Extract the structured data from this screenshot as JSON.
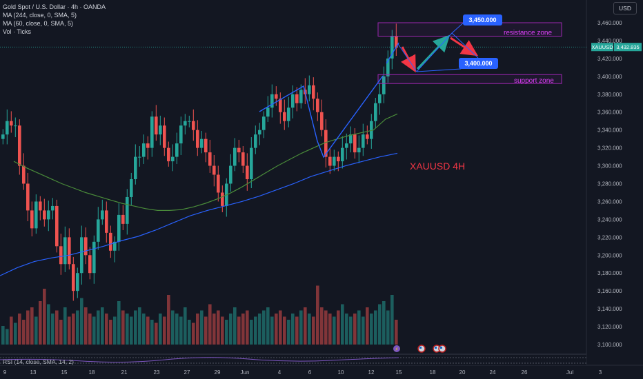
{
  "legend": {
    "title": "Gold Spot / U.S. Dollar · 4h · OANDA",
    "ma1": "MA (244, close, 0, SMA, 5)",
    "ma2": "MA (60, close, 0, SMA, 5)",
    "vol": "Vol · Ticks"
  },
  "currency": "USD",
  "rsi_label": "RSI (14, close, SMA, 14, 2)",
  "symbol_badge": "XAUUSD",
  "price_badge": "3,432.835",
  "chart_watermark": "XAUUSD 4H",
  "annotations": {
    "resistance": "resistance zone",
    "support": "support zone",
    "target_high": "3,450.000",
    "target_low": "3,400.000"
  },
  "colors": {
    "background": "#131722",
    "up": "#26a69a",
    "down": "#ef5350",
    "ma244": "#2962ff",
    "ma60": "#4a8c3a",
    "zone": "#9c27b0",
    "arrow_red": "#f23645",
    "arrow_green": "#26a69a",
    "trendline": "#2962ff",
    "callout": "#2962ff",
    "watermark": "#f23645"
  },
  "chart_data": {
    "type": "candlestick",
    "title": "Gold Spot / U.S. Dollar · 4h · OANDA",
    "price_axis": [
      "3,460.000",
      "3,440.000",
      "3,420.000",
      "3,400.000",
      "3,380.000",
      "3,360.000",
      "3,340.000",
      "3,320.000",
      "3,300.000",
      "3,280.000",
      "3,260.000",
      "3,240.000",
      "3,220.000",
      "3,200.000",
      "3,180.000",
      "3,160.000",
      "3,140.000",
      "3,120.000",
      "3,100.000"
    ],
    "ylim": [
      3090,
      3470
    ],
    "time_axis": [
      "9",
      "13",
      "15",
      "18",
      "21",
      "23",
      "27",
      "29",
      "Jun",
      "4",
      "6",
      "10",
      "12",
      "15",
      "18",
      "20",
      "24",
      "26",
      "Jul",
      "3"
    ],
    "current_price": 3432.835,
    "resistance_zone": [
      3445,
      3460
    ],
    "support_zone": [
      3392,
      3402
    ],
    "price_path": [
      3335,
      3350,
      3345,
      3345,
      3300,
      3280,
      3250,
      3230,
      3260,
      3250,
      3240,
      3250,
      3255,
      3210,
      3190,
      3220,
      3190,
      3160,
      3180,
      3220,
      3200,
      3180,
      3215,
      3240,
      3250,
      3225,
      3205,
      3215,
      3245,
      3235,
      3265,
      3285,
      3310,
      3310,
      3325,
      3320,
      3355,
      3335,
      3345,
      3320,
      3305,
      3310,
      3325,
      3345,
      3350,
      3350,
      3340,
      3320,
      3330,
      3315,
      3300,
      3290,
      3270,
      3255,
      3280,
      3300,
      3320,
      3315,
      3300,
      3285,
      3320,
      3335,
      3340,
      3355,
      3365,
      3380,
      3375,
      3360,
      3350,
      3365,
      3380,
      3370,
      3385,
      3380,
      3390,
      3375,
      3360,
      3340,
      3310,
      3300,
      3310,
      3305,
      3320,
      3325,
      3335,
      3315,
      3320,
      3335,
      3330,
      3350,
      3370,
      3380,
      3400,
      3420,
      3445,
      3432
    ],
    "ma60": [
      3305,
      3298,
      3292,
      3286,
      3280,
      3275,
      3270,
      3266,
      3262,
      3258,
      3255,
      3252,
      3250,
      3250,
      3251,
      3254,
      3258,
      3263,
      3269,
      3276,
      3284,
      3292,
      3300,
      3307,
      3314,
      3320,
      3326,
      3330,
      3334,
      3337,
      3340,
      3352,
      3358
    ],
    "ma244": [
      3177,
      3186,
      3193,
      3197,
      3200,
      3205,
      3210,
      3216,
      3221,
      3228,
      3236,
      3244,
      3250,
      3255,
      3260,
      3266,
      3273,
      3280,
      3288,
      3294,
      3300,
      3305,
      3310,
      3314
    ],
    "volume": [
      0.3,
      0.25,
      0.45,
      0.35,
      0.5,
      0.4,
      0.55,
      0.6,
      0.45,
      0.7,
      0.9,
      0.65,
      0.5,
      0.55,
      0.4,
      0.6,
      0.45,
      0.5,
      0.55,
      0.75,
      0.6,
      0.5,
      0.45,
      0.55,
      0.6,
      0.5,
      0.4,
      0.45,
      0.7,
      0.55,
      0.5,
      0.45,
      0.55,
      0.6,
      0.5,
      0.45,
      0.4,
      0.35,
      0.5,
      0.45,
      0.8,
      0.55,
      0.5,
      0.45,
      0.6,
      0.4,
      0.35,
      0.5,
      0.55,
      0.45,
      0.65,
      0.5,
      0.55,
      0.45,
      0.4,
      0.5,
      0.6,
      0.45,
      0.5,
      0.55,
      0.4,
      0.45,
      0.5,
      0.55,
      0.6,
      0.45,
      0.5,
      0.55,
      0.45,
      0.4,
      0.5,
      0.45,
      0.55,
      0.6,
      0.5,
      0.45,
      0.95,
      0.6,
      0.55,
      0.5,
      0.45,
      0.55,
      0.65,
      0.5,
      0.45,
      0.5,
      0.55,
      0.45,
      0.6,
      0.5,
      0.55,
      0.65,
      0.7,
      0.55,
      0.8,
      0.4
    ]
  }
}
